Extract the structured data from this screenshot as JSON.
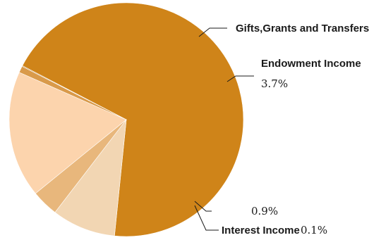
{
  "chart_data": {
    "type": "pie",
    "title": "",
    "slices": [
      {
        "name": "",
        "percent_label": "",
        "value": 68.9,
        "color": "#cf8419"
      },
      {
        "name": "Gifts,Grants and Transfers",
        "percent_label": "",
        "value": 8.8,
        "color": "#f2d6b3"
      },
      {
        "name": "Endowment Income",
        "percent_label": "3.7%",
        "value": 3.7,
        "color": "#e8b77c"
      },
      {
        "name": "",
        "percent_label": "",
        "value": 17.5,
        "color": "#fcd4ad"
      },
      {
        "name": "",
        "percent_label": "0.9%",
        "value": 0.9,
        "color": "#d99a4a"
      },
      {
        "name": "Interest Income",
        "percent_label": "0.1%",
        "value": 0.1,
        "color": "#b36f12"
      }
    ]
  }
}
